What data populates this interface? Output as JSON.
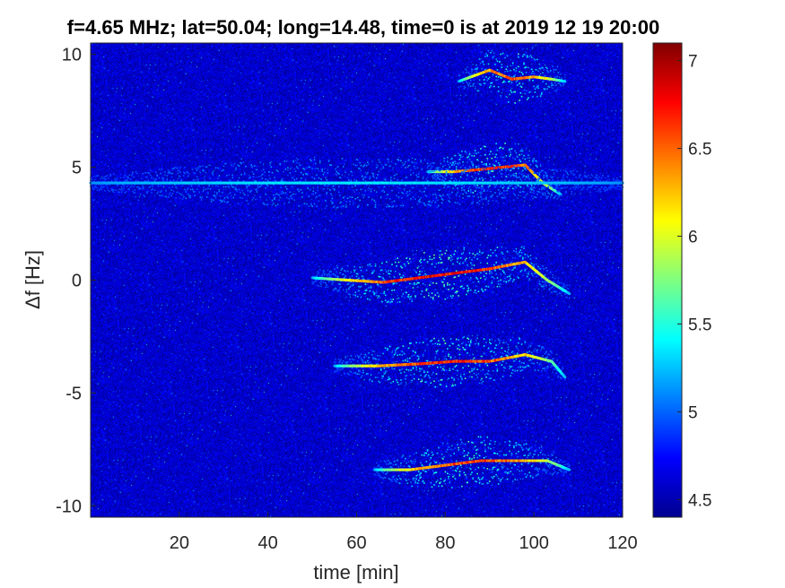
{
  "chart_data": {
    "type": "heatmap",
    "title": "f=4.65 MHz;  lat=50.04; long=14.48, time=0 is at 2019 12 19 20:00",
    "xlabel": "time [min]",
    "ylabel": "Δf [Hz]",
    "xlim": [
      0,
      120
    ],
    "ylim": [
      -10.5,
      10.5
    ],
    "xticks": [
      20,
      40,
      60,
      80,
      100,
      120
    ],
    "yticks": [
      10,
      5,
      0,
      -5,
      -10
    ],
    "colorbar": {
      "clim": [
        4.4,
        7.1
      ],
      "ticks": [
        4.5,
        5,
        5.5,
        6,
        6.5,
        7
      ],
      "colormap": "jet"
    },
    "background_level": 4.6,
    "traces": [
      {
        "x": [
          76,
          82,
          88,
          93,
          98,
          102,
          106
        ],
        "y": [
          4.8,
          4.8,
          4.9,
          5.0,
          5.1,
          4.3,
          3.8
        ],
        "peak": 6.9
      },
      {
        "x": [
          50,
          58,
          66,
          74,
          82,
          90,
          98,
          103,
          108
        ],
        "y": [
          0.1,
          0.0,
          -0.1,
          0.1,
          0.3,
          0.5,
          0.8,
          0.0,
          -0.6
        ],
        "peak": 7.0
      },
      {
        "x": [
          55,
          65,
          75,
          82,
          90,
          98,
          104,
          107
        ],
        "y": [
          -3.8,
          -3.8,
          -3.7,
          -3.6,
          -3.6,
          -3.3,
          -3.6,
          -4.3
        ],
        "peak": 6.9
      },
      {
        "x": [
          64,
          72,
          80,
          88,
          96,
          103,
          108
        ],
        "y": [
          -8.4,
          -8.4,
          -8.2,
          -8.0,
          -8.0,
          -8.0,
          -8.4
        ],
        "peak": 6.8
      },
      {
        "x": [
          83,
          90,
          95,
          100,
          104,
          107
        ],
        "y": [
          8.8,
          9.3,
          8.9,
          9.0,
          8.9,
          8.8
        ],
        "peak": 6.7
      },
      {
        "x": [
          0,
          30,
          60,
          90,
          120
        ],
        "y": [
          4.3,
          4.3,
          4.3,
          4.3,
          4.3
        ],
        "peak": 5.4
      }
    ]
  }
}
